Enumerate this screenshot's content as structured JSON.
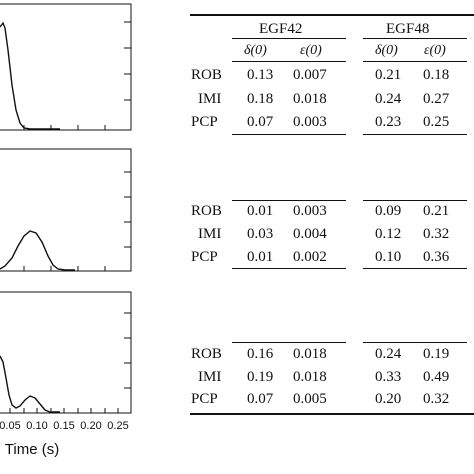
{
  "figure": {
    "x_ticks": [
      "0.05",
      "0.10",
      "0.15",
      "0.20",
      "0.25"
    ],
    "x_label": "Time (s)"
  },
  "table": {
    "groups": [
      "EGF42",
      "EGF48"
    ],
    "col_headers": [
      "δ(0)",
      "ε(0)",
      "δ(0)",
      "ε(0)"
    ],
    "blocks": [
      {
        "rows": [
          {
            "label": "ROB",
            "values": [
              "0.13",
              "0.007",
              "0.21",
              "0.18"
            ]
          },
          {
            "label": "IMI",
            "values": [
              "0.18",
              "0.018",
              "0.24",
              "0.27"
            ]
          },
          {
            "label": "PCP",
            "values": [
              "0.07",
              "0.003",
              "0.23",
              "0.25"
            ]
          }
        ]
      },
      {
        "rows": [
          {
            "label": "ROB",
            "values": [
              "0.01",
              "0.003",
              "0.09",
              "0.21"
            ]
          },
          {
            "label": "IMI",
            "values": [
              "0.03",
              "0.004",
              "0.12",
              "0.32"
            ]
          },
          {
            "label": "PCP",
            "values": [
              "0.01",
              "0.002",
              "0.10",
              "0.36"
            ]
          }
        ]
      },
      {
        "rows": [
          {
            "label": "ROB",
            "values": [
              "0.16",
              "0.018",
              "0.24",
              "0.19"
            ]
          },
          {
            "label": "IMI",
            "values": [
              "0.19",
              "0.018",
              "0.33",
              "0.49"
            ]
          },
          {
            "label": "PCP",
            "values": [
              "0.07",
              "0.005",
              "0.20",
              "0.32"
            ]
          }
        ]
      }
    ]
  }
}
